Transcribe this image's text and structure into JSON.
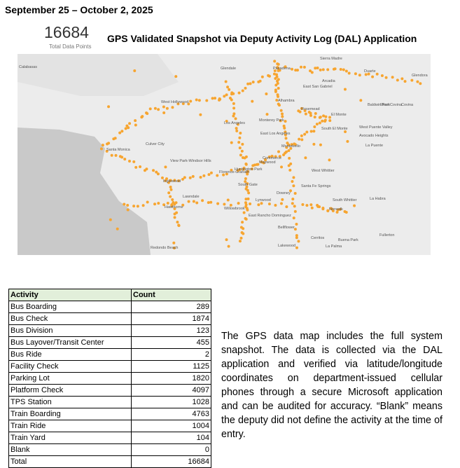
{
  "header": {
    "date_range": "September 25 – October 2, 2025",
    "total_value": 16684,
    "total_label": "Total Data Points",
    "title": "GPS Validated Snapshot via Deputy Activity Log (DAL) Application"
  },
  "map": {
    "labels": [
      "Calabasas",
      "Glendale",
      "Pasadena",
      "Sierra Madre",
      "Duarte",
      "Glendora",
      "Arcadia",
      "East San Gabriel",
      "West Hollywood",
      "Alhambra",
      "Rosemead",
      "El Monte",
      "Baldwin Park",
      "West Covina",
      "Covina",
      "Los Angeles",
      "Monterey Park",
      "South El Monte",
      "Culver City",
      "East Los Angeles",
      "West Puente Valley",
      "Avocado Heights",
      "Santa Monica",
      "Montebello",
      "La Puente",
      "View Park-Windsor Hills",
      "Commerce",
      "Maywood",
      "Huntington Park",
      "Inglewood",
      "Florence-Graham",
      "South Gate",
      "West Whittier",
      "Lawndale",
      "Hawthorne",
      "Lynwood",
      "Downey",
      "Santa Fe Springs",
      "South Whittier",
      "La Habra",
      "Willowbrook",
      "Norwalk",
      "East Rancho Dominguez",
      "Bellflower",
      "Fullerton",
      "Cerritos",
      "Buena Park",
      "Redondo Beach",
      "Lakewood",
      "La Palma"
    ]
  },
  "table": {
    "columns": [
      "Activity",
      "Count"
    ],
    "rows": [
      [
        "Bus Boarding",
        289
      ],
      [
        "Bus Check",
        1874
      ],
      [
        "Bus Division",
        123
      ],
      [
        "Bus Layover/Transit Center",
        455
      ],
      [
        "Bus Ride",
        2
      ],
      [
        "Facility Check",
        1125
      ],
      [
        "Parking Lot",
        1820
      ],
      [
        "Platform Check",
        4097
      ],
      [
        "TPS Station",
        1028
      ],
      [
        "Train Boarding",
        4763
      ],
      [
        "Train Ride",
        1004
      ],
      [
        "Train Yard",
        104
      ],
      [
        "Blank",
        0
      ],
      [
        "Total",
        16684
      ]
    ]
  },
  "note": "The GPS data map includes the full system snapshot. The data is collected via the DAL application and verified via latitude/longitude coordinates on department-issued cellular phones through a secure Microsoft application and can be audited for accuracy. “Blank” means the deputy did not define the activity at the time of entry."
}
